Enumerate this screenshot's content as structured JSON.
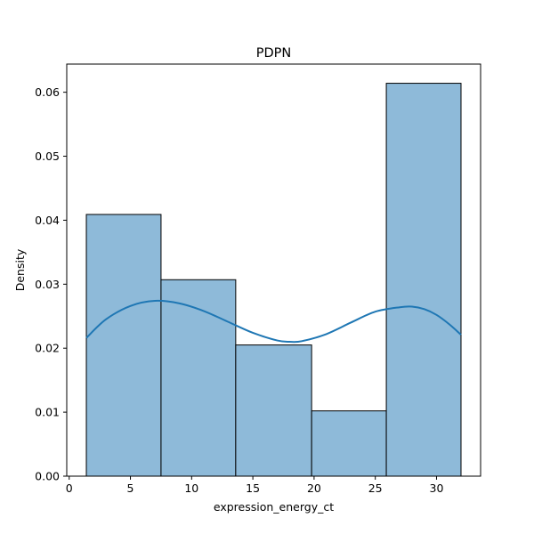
{
  "chart_data": {
    "type": "bar",
    "subtype": "histogram-with-kde",
    "title": "PDPN",
    "xlabel": "expression_energy_ct",
    "ylabel": "Density",
    "xlim": [
      -0.2,
      33.6
    ],
    "ylim": [
      0,
      0.0644
    ],
    "x_ticks": [
      0,
      5,
      10,
      15,
      20,
      25,
      30
    ],
    "x_tick_labels": [
      "0",
      "5",
      "10",
      "15",
      "20",
      "25",
      "30"
    ],
    "y_ticks": [
      0,
      0.01,
      0.02,
      0.03,
      0.04,
      0.05,
      0.06
    ],
    "y_tick_labels": [
      "0.00",
      "0.01",
      "0.02",
      "0.03",
      "0.04",
      "0.05",
      "0.06"
    ],
    "bins": [
      {
        "x0": 1.4,
        "x1": 7.5,
        "density": 0.0409
      },
      {
        "x0": 7.5,
        "x1": 13.6,
        "density": 0.0307
      },
      {
        "x0": 13.6,
        "x1": 19.8,
        "density": 0.0205
      },
      {
        "x0": 19.8,
        "x1": 25.9,
        "density": 0.0102
      },
      {
        "x0": 25.9,
        "x1": 32.0,
        "density": 0.0614
      }
    ],
    "kde": {
      "x": [
        1.4,
        3.0,
        5.0,
        7.0,
        9.0,
        11.0,
        13.0,
        15.0,
        17.0,
        18.0,
        19.0,
        21.0,
        23.0,
        25.0,
        27.0,
        28.0,
        29.0,
        30.0,
        31.0,
        32.0
      ],
      "y": [
        0.0216,
        0.0245,
        0.0266,
        0.0274,
        0.027,
        0.0258,
        0.0241,
        0.0224,
        0.0212,
        0.021,
        0.0211,
        0.0222,
        0.024,
        0.0257,
        0.0264,
        0.0265,
        0.0261,
        0.0252,
        0.0238,
        0.0221
      ]
    },
    "colors": {
      "bar_fill": "#8ebad9",
      "bar_edge": "#000000",
      "kde_line": "#1f77b4"
    },
    "grid": false,
    "legend": "none"
  }
}
